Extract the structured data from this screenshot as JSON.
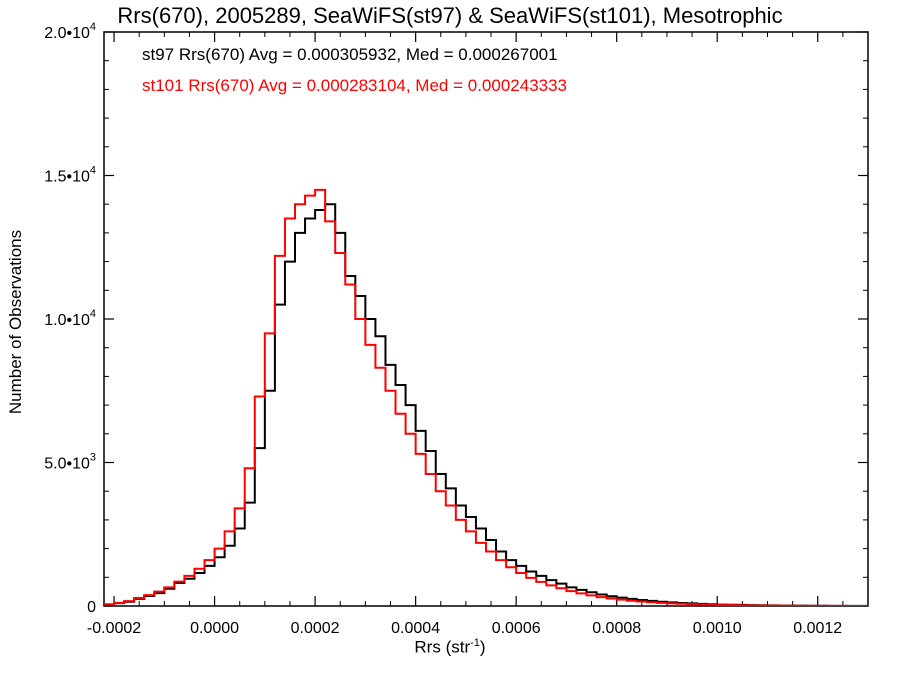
{
  "chart_data": {
    "type": "line",
    "title": "Rrs(670), 2005289, SeaWiFS(st97) & SeaWiFS(st101), Mesotrophic",
    "xlabel_base": "Rrs (str",
    "xlabel_exp": "-1",
    "xlabel_end": ")",
    "ylabel": "Number of Observations",
    "xlim": [
      -0.00022,
      0.0013
    ],
    "ylim": [
      0,
      20000
    ],
    "x_ticks": [
      {
        "value": -0.0002,
        "label": "-0.0002"
      },
      {
        "value": 0.0,
        "label": "0.0000"
      },
      {
        "value": 0.0002,
        "label": "0.0002"
      },
      {
        "value": 0.0004,
        "label": "0.0004"
      },
      {
        "value": 0.0006,
        "label": "0.0006"
      },
      {
        "value": 0.0008,
        "label": "0.0008"
      },
      {
        "value": 0.001,
        "label": "0.0010"
      },
      {
        "value": 0.0012,
        "label": "0.0012"
      }
    ],
    "y_ticks": [
      {
        "value": 0,
        "mantissa": "0",
        "exp": ""
      },
      {
        "value": 5000,
        "mantissa": "5.0•10",
        "exp": "3"
      },
      {
        "value": 10000,
        "mantissa": "1.0•10",
        "exp": "4"
      },
      {
        "value": 15000,
        "mantissa": "1.5•10",
        "exp": "4"
      },
      {
        "value": 20000,
        "mantissa": "2.0•10",
        "exp": "4"
      }
    ],
    "annotations": [
      {
        "text": "st97 Rrs(670) Avg = 0.000305932, Med = 0.000267001",
        "color": "#000000"
      },
      {
        "text": "st101 Rrs(670) Avg = 0.000283104, Med = 0.000243333",
        "color": "#ff0000"
      }
    ],
    "series": [
      {
        "name": "st97",
        "color": "#000000",
        "x": [
          -0.00022,
          -0.0002,
          -0.00018,
          -0.00016,
          -0.00014,
          -0.00012,
          -0.0001,
          -8e-05,
          -6e-05,
          -4e-05,
          -2e-05,
          0.0,
          2e-05,
          4e-05,
          6e-05,
          8e-05,
          0.0001,
          0.00012,
          0.00014,
          0.00016,
          0.00018,
          0.0002,
          0.00022,
          0.00024,
          0.00026,
          0.00028,
          0.0003,
          0.00032,
          0.00034,
          0.00036,
          0.00038,
          0.0004,
          0.00042,
          0.00044,
          0.00046,
          0.00048,
          0.0005,
          0.00052,
          0.00054,
          0.00056,
          0.00058,
          0.0006,
          0.00062,
          0.00064,
          0.00066,
          0.00068,
          0.0007,
          0.00072,
          0.00074,
          0.00076,
          0.00078,
          0.0008,
          0.00082,
          0.00084,
          0.00086,
          0.00088,
          0.0009,
          0.00092,
          0.00094,
          0.00096,
          0.00098,
          0.001,
          0.00102,
          0.00104,
          0.00106,
          0.00108,
          0.0011,
          0.00112,
          0.00114,
          0.00116,
          0.00118,
          0.0012,
          0.00122,
          0.00124,
          0.00126,
          0.00128,
          0.0013
        ],
        "y": [
          50,
          100,
          150,
          250,
          350,
          450,
          600,
          800,
          950,
          1150,
          1400,
          1700,
          2100,
          2700,
          3600,
          5500,
          7500,
          10500,
          12000,
          13000,
          13500,
          13800,
          14000,
          13000,
          11500,
          10800,
          10000,
          9400,
          8400,
          7700,
          7000,
          6100,
          5400,
          4600,
          4100,
          3500,
          3100,
          2700,
          2300,
          1900,
          1600,
          1400,
          1200,
          1050,
          900,
          780,
          650,
          560,
          480,
          400,
          340,
          290,
          250,
          210,
          180,
          150,
          125,
          105,
          90,
          75,
          60,
          50,
          45,
          38,
          32,
          26,
          22,
          18,
          15,
          12,
          10,
          8,
          6,
          5,
          4,
          3,
          2
        ]
      },
      {
        "name": "st101",
        "color": "#ff0000",
        "x": [
          -0.00022,
          -0.0002,
          -0.00018,
          -0.00016,
          -0.00014,
          -0.00012,
          -0.0001,
          -8e-05,
          -6e-05,
          -4e-05,
          -2e-05,
          0.0,
          2e-05,
          4e-05,
          6e-05,
          8e-05,
          0.0001,
          0.00012,
          0.00014,
          0.00016,
          0.00018,
          0.0002,
          0.00022,
          0.00024,
          0.00026,
          0.00028,
          0.0003,
          0.00032,
          0.00034,
          0.00036,
          0.00038,
          0.0004,
          0.00042,
          0.00044,
          0.00046,
          0.00048,
          0.0005,
          0.00052,
          0.00054,
          0.00056,
          0.00058,
          0.0006,
          0.00062,
          0.00064,
          0.00066,
          0.00068,
          0.0007,
          0.00072,
          0.00074,
          0.00076,
          0.00078,
          0.0008,
          0.00082,
          0.00084,
          0.00086,
          0.00088,
          0.0009,
          0.00092,
          0.00094,
          0.00096,
          0.00098,
          0.001,
          0.00102,
          0.00104,
          0.00106,
          0.00108,
          0.0011,
          0.00112,
          0.00114,
          0.00116,
          0.00118,
          0.0012,
          0.00122,
          0.00124,
          0.00126,
          0.00128,
          0.0013
        ],
        "y": [
          60,
          110,
          170,
          280,
          380,
          500,
          650,
          850,
          1050,
          1300,
          1600,
          2000,
          2600,
          3400,
          4800,
          7300,
          9500,
          12200,
          13500,
          14000,
          14300,
          14500,
          13400,
          12300,
          11200,
          10000,
          9100,
          8300,
          7500,
          6700,
          6000,
          5300,
          4600,
          4000,
          3500,
          3000,
          2600,
          2200,
          1900,
          1600,
          1350,
          1150,
          980,
          840,
          720,
          620,
          520,
          440,
          370,
          310,
          260,
          220,
          185,
          155,
          130,
          110,
          92,
          78,
          64,
          54,
          45,
          38,
          32,
          27,
          22,
          18,
          15,
          12,
          10,
          8,
          6,
          5,
          4,
          3,
          2,
          2,
          1
        ]
      }
    ]
  }
}
